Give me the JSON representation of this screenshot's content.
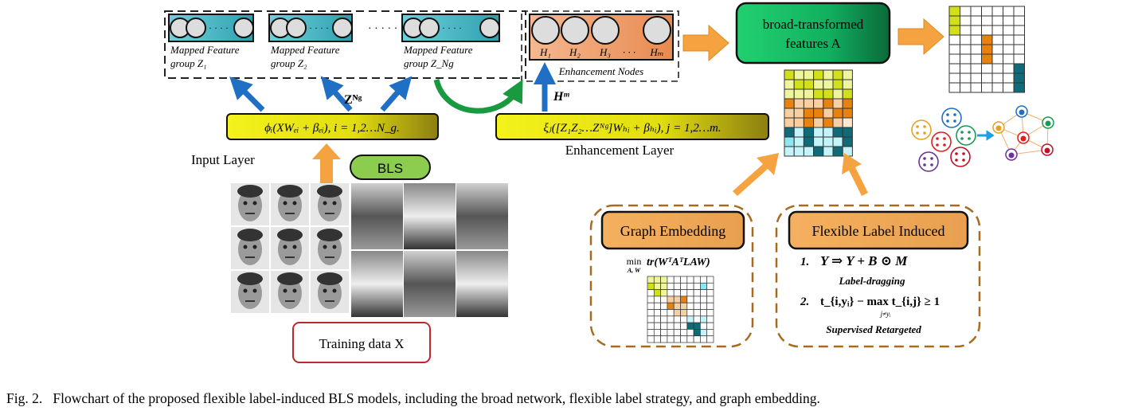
{
  "mapped": {
    "groups": [
      {
        "line1": "Mapped Feature",
        "line2": "group Z₁"
      },
      {
        "line1": "Mapped Feature",
        "line2": "group Z₂"
      },
      {
        "line1": "Mapped Feature",
        "line2": "group Z_Ng"
      }
    ],
    "ellipsis": "· · · · ·",
    "inner_dots": "· · · ·"
  },
  "enhancement_nodes": {
    "labels": [
      "H₁",
      "H₂",
      "H₃",
      "· · ·",
      "Hₘ"
    ],
    "caption": "Enhancement Nodes"
  },
  "arrows": {
    "z_label": "Zᴺᵍ",
    "h_label": "Hᵐ"
  },
  "input_formula": "ϕᵢ(XWₑᵢ + βₑᵢ), i = 1,2…N_g.",
  "enh_formula": "ξⱼ([Z₁Z₂…Zᴺᵍ]Wₕᵢ + βₕᵢ), j = 1,2…m.",
  "input_layer_label": "Input Layer",
  "enhancement_layer_label": "Enhancement Layer",
  "bls_label": "BLS",
  "training_label": "Training data X",
  "broad": {
    "line1": "broad-transformed",
    "line2": "features A"
  },
  "graph_embedding": {
    "title": "Graph Embedding",
    "formula_min": "min",
    "formula_sub": "A, W",
    "formula": "tr(WᵀAᵀLAW)"
  },
  "flexible": {
    "title": "Flexible Label Induced",
    "item1_num": "1.",
    "item1_formula": "Y ⇒ Y + B ⊙ M",
    "item1_caption": "Label-dragging",
    "item2_num": "2.",
    "item2_formula": "t_{i,yᵢ} − max t_{i,j} ≥ 1",
    "item2_sub": "j≠yᵢ",
    "item2_caption": "Supervised Retargeted"
  },
  "caption": "Fig. 2.   Flowchart of the proposed flexible label-induced BLS models, including the broad network, flexible label strategy, and graph embedding.",
  "colors": {
    "lime": "#d2e01c",
    "lime_light": "#eef59c",
    "orange": "#e8820e",
    "orange_light": "#f8cfa0",
    "orange_pale": "#fde8d0",
    "teal": "#0f6b78",
    "cyan": "#8fe6f3",
    "cyan_light": "#c4f3fa",
    "arrow_orange": "#f4a340",
    "arrow_blue": "#1f6fc4",
    "box_border": "#a86a1e",
    "mapped_fill": "#3fb8c4",
    "enh_fill": "#f0a070"
  },
  "matrices": {
    "stack": [
      "LllLlLl",
      "lLLllLl",
      "lllLLlL",
      "OoooOoO",
      "ooOOoOO",
      "ooOoOop",
      "TcTccTT",
      "CcTcccT",
      "cccTcTc"
    ],
    "label": [
      "Lwwwwww",
      "Lwwwwww",
      "Lwwwwww",
      "wwwOwww",
      "wwwOwww",
      "wwwOwww",
      "wwwwwwT",
      "wwwwwwT",
      "wwwwwwT"
    ],
    "graph": [
      "lllwwwwwww",
      "LllwwwwwWw",
      "wLlwwwwwww",
      "wwwooOwwww",
      "wwwOoowwww",
      "wwwwoowwww",
      "wwwwwwcwcw",
      "wwwwwwTTww",
      "wwwwwwwTcw",
      "wwwwwwwwww"
    ]
  },
  "icons": {
    "clusters": "cluster-to-graph-icon",
    "faces": "face-photo-icon",
    "scenes": "scene-photo-icon"
  }
}
